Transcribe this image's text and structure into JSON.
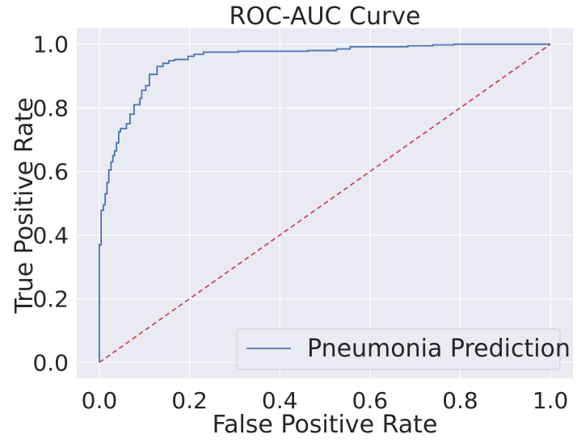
{
  "chart_data": {
    "type": "line",
    "title": "ROC-AUC Curve",
    "xlabel": "False Positive Rate",
    "ylabel": "True Positive Rate",
    "xlim": [
      -0.05,
      1.05
    ],
    "ylim": [
      -0.05,
      1.05
    ],
    "xticks": [
      0.0,
      0.2,
      0.4,
      0.6,
      0.8,
      1.0
    ],
    "yticks": [
      0.0,
      0.2,
      0.4,
      0.6,
      0.8,
      1.0
    ],
    "xtick_labels": [
      "0.0",
      "0.2",
      "0.4",
      "0.6",
      "0.8",
      "1.0"
    ],
    "ytick_labels": [
      "0.0",
      "0.2",
      "0.4",
      "0.6",
      "0.8",
      "1.0"
    ],
    "grid": true,
    "legend_position": "lower-right",
    "series": [
      {
        "name": "Pneumonia Prediction",
        "color": "#4c72b0",
        "style": "solid",
        "x": [
          0.0,
          0.0,
          0.004,
          0.004,
          0.009,
          0.009,
          0.013,
          0.013,
          0.017,
          0.017,
          0.021,
          0.021,
          0.026,
          0.026,
          0.03,
          0.03,
          0.034,
          0.034,
          0.038,
          0.038,
          0.043,
          0.043,
          0.047,
          0.047,
          0.06,
          0.06,
          0.068,
          0.068,
          0.077,
          0.077,
          0.09,
          0.09,
          0.094,
          0.094,
          0.103,
          0.103,
          0.111,
          0.111,
          0.128,
          0.128,
          0.141,
          0.141,
          0.154,
          0.154,
          0.167,
          0.167,
          0.197,
          0.197,
          0.21,
          0.21,
          0.231,
          0.231,
          0.308,
          0.308,
          0.462,
          0.462,
          0.526,
          0.526,
          0.556,
          0.556,
          0.684,
          0.684,
          0.739,
          0.739,
          0.786,
          0.786,
          1.0
        ],
        "y": [
          0.0,
          0.37,
          0.37,
          0.478,
          0.478,
          0.495,
          0.495,
          0.53,
          0.53,
          0.565,
          0.565,
          0.605,
          0.605,
          0.63,
          0.63,
          0.65,
          0.65,
          0.665,
          0.665,
          0.69,
          0.69,
          0.725,
          0.725,
          0.735,
          0.735,
          0.75,
          0.75,
          0.78,
          0.78,
          0.81,
          0.81,
          0.83,
          0.83,
          0.855,
          0.855,
          0.87,
          0.87,
          0.905,
          0.905,
          0.93,
          0.93,
          0.94,
          0.94,
          0.948,
          0.948,
          0.952,
          0.952,
          0.962,
          0.962,
          0.968,
          0.968,
          0.975,
          0.975,
          0.978,
          0.978,
          0.98,
          0.98,
          0.985,
          0.985,
          0.992,
          0.992,
          0.995,
          0.995,
          0.998,
          0.998,
          1.0,
          1.0
        ]
      },
      {
        "color": "#c44e52",
        "style": "dashed",
        "x": [
          0.0,
          1.0
        ],
        "y": [
          0.0,
          1.0
        ]
      }
    ]
  }
}
